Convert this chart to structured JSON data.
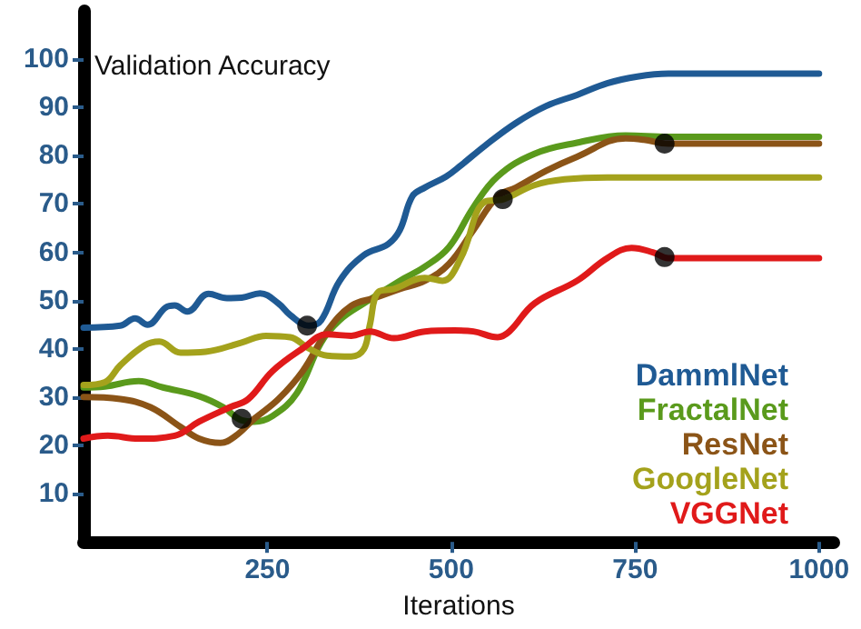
{
  "chart_data": {
    "type": "line",
    "xlabel": "Iterations",
    "ylabel": "Validation Accuracy",
    "xlim": [
      0,
      1020
    ],
    "ylim": [
      0,
      110
    ],
    "xticks": [
      250,
      500,
      750,
      1000
    ],
    "yticks": [
      10,
      20,
      30,
      40,
      50,
      60,
      70,
      80,
      90,
      100
    ],
    "grid": false,
    "legend": "bottom right",
    "marker": "none",
    "line_style": "solid",
    "series": [
      {
        "name": "DammlNet",
        "color": "#1f5a94",
        "x": [
          0,
          50,
          70,
          87,
          112,
          124,
          141,
          170,
          195,
          215,
          240,
          265,
          281,
          306,
          323,
          348,
          381,
          414,
          430,
          447,
          464,
          493,
          513,
          546,
          588,
          629,
          671,
          712,
          753,
          795,
          1000
        ],
        "values": [
          44.4,
          44.8,
          46.3,
          45,
          48.6,
          49,
          47.7,
          51.4,
          50.5,
          50.6,
          51.5,
          49.4,
          47,
          44.8,
          45.9,
          54,
          59.4,
          61.7,
          64.6,
          71.6,
          73.4,
          75.7,
          78,
          82.1,
          86.8,
          90.3,
          92.6,
          95,
          96.4,
          97,
          97
        ]
      },
      {
        "name": "FractalNet",
        "color": "#5a9a1c",
        "x": [
          0,
          29,
          75,
          108,
          157,
          190,
          215,
          232,
          257,
          290,
          323,
          348,
          381,
          430,
          464,
          497,
          530,
          563,
          613,
          671,
          737,
          795,
          1000
        ],
        "values": [
          32,
          32.2,
          33.3,
          32,
          30.2,
          27.9,
          25.2,
          24.9,
          26.1,
          30.8,
          41.3,
          45.9,
          49.4,
          54.1,
          57,
          61.1,
          69.3,
          75.7,
          80.4,
          82.7,
          84.2,
          83.9,
          83.9
        ]
      },
      {
        "name": "ResNet",
        "color": "#8b5417",
        "x": [
          0,
          50,
          91,
          132,
          157,
          186,
          207,
          232,
          265,
          298,
          331,
          364,
          397,
          430,
          464,
          497,
          530,
          563,
          588,
          629,
          671,
          737,
          762,
          795,
          1000
        ],
        "values": [
          30,
          29.6,
          27.9,
          23.8,
          21.4,
          20.5,
          22,
          25.5,
          29.6,
          35.4,
          43.6,
          48.9,
          50.6,
          52.4,
          54.1,
          57.6,
          64.6,
          71.6,
          73.4,
          76.9,
          79.8,
          83.6,
          83.3,
          82.5,
          82.5
        ]
      },
      {
        "name": "GoogleNet",
        "color": "#a4a21c",
        "x": [
          0,
          29,
          50,
          83,
          103,
          132,
          166,
          215,
          248,
          281,
          306,
          331,
          364,
          381,
          389,
          401,
          422,
          464,
          488,
          513,
          546,
          571,
          613,
          654,
          712,
          1000
        ],
        "values": [
          32.5,
          33.1,
          36.6,
          40.7,
          41.5,
          39.2,
          39.4,
          41.3,
          42.7,
          42.4,
          40.1,
          38.6,
          38.4,
          39.9,
          44.8,
          51.8,
          52.4,
          54.7,
          54.1,
          58.8,
          70.5,
          71,
          73.9,
          75.1,
          75.5,
          75.5
        ]
      },
      {
        "name": "VGGNet",
        "color": "#e01a1a",
        "x": [
          0,
          33,
          75,
          124,
          157,
          199,
          224,
          257,
          298,
          331,
          364,
          389,
          422,
          464,
          505,
          530,
          563,
          579,
          613,
          671,
          712,
          745,
          774,
          795,
          1000
        ],
        "values": [
          21.4,
          22,
          21.4,
          22,
          24.9,
          27.9,
          29.6,
          35.4,
          40.1,
          43,
          42.7,
          43.6,
          42.2,
          43.6,
          43.8,
          43.6,
          42.4,
          43.6,
          49.4,
          54.1,
          58.8,
          60.9,
          60,
          58.8,
          58.8
        ]
      },
      {
        "type": "scatter",
        "color": "#000000",
        "marker": "circle",
        "x": [
          304,
          215,
          570,
          790,
          790
        ],
        "values": [
          44.8,
          25.5,
          71,
          82.5,
          59
        ]
      }
    ]
  }
}
